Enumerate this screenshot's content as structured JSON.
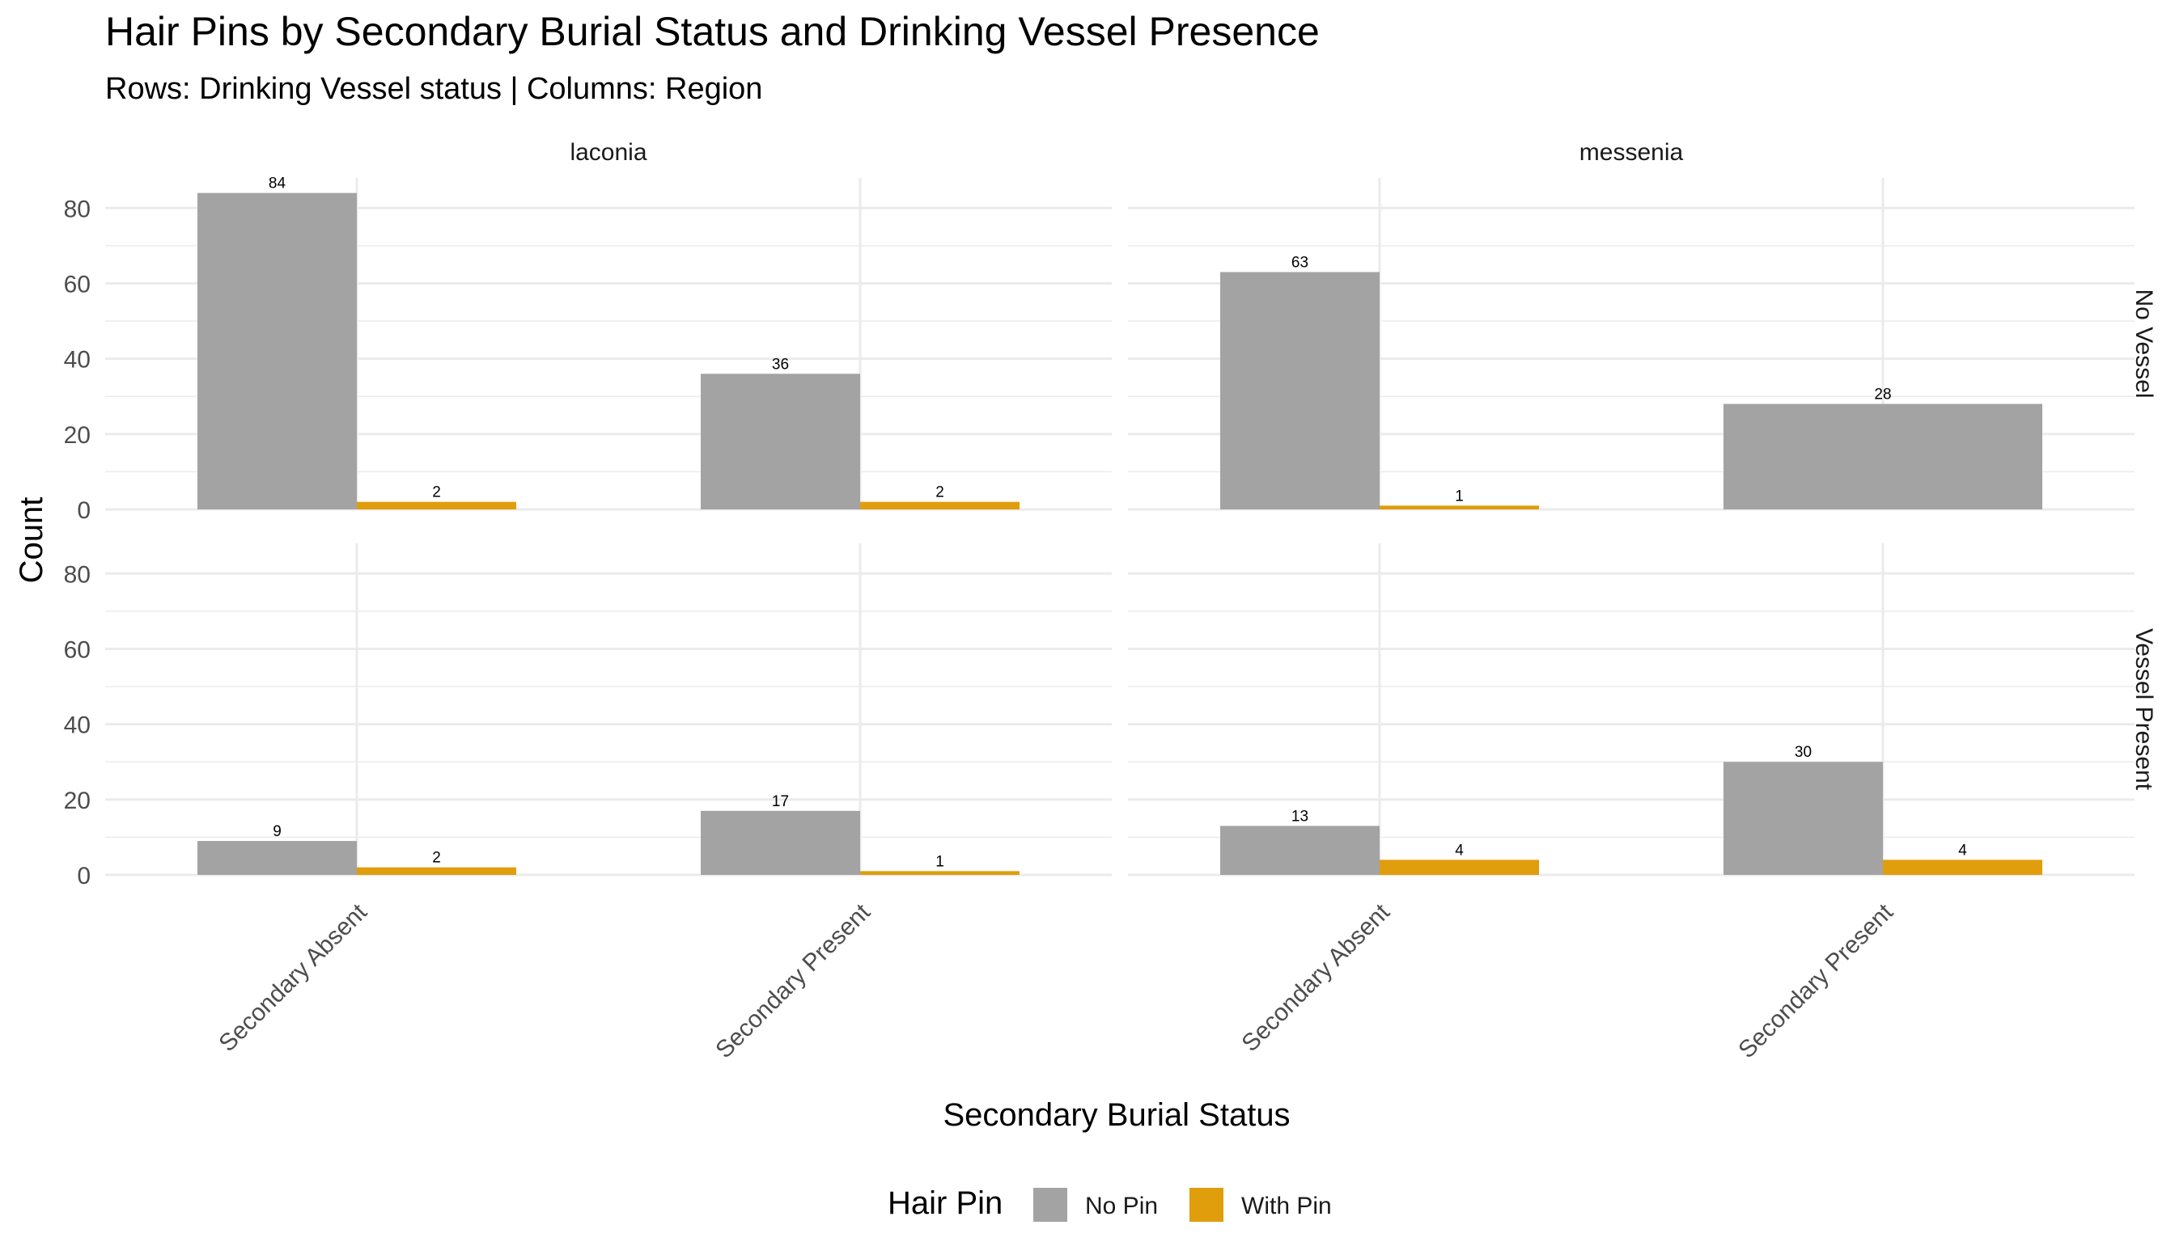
{
  "colors": {
    "no_pin": "#A3A3A3",
    "with_pin": "#E09D0C"
  },
  "chart_data": {
    "type": "bar",
    "title": "Hair Pins by Secondary Burial Status and Drinking Vessel Presence",
    "subtitle": "Rows: Drinking Vessel status | Columns: Region",
    "xlabel": "Secondary Burial Status",
    "ylabel": "Count",
    "ylim": [
      0,
      88
    ],
    "y_ticks": [
      0,
      20,
      40,
      60,
      80
    ],
    "categories": [
      "Secondary Absent",
      "Secondary Present"
    ],
    "legend": {
      "title": "Hair Pin",
      "placement": "bottom",
      "entries": [
        "No Pin",
        "With Pin"
      ]
    },
    "columns": [
      "laconia",
      "messenia"
    ],
    "rows": [
      "No Vessel",
      "Vessel Present"
    ],
    "panels": [
      {
        "column": "laconia",
        "row": "No Vessel",
        "series": [
          {
            "name": "No Pin",
            "values": [
              84,
              36
            ]
          },
          {
            "name": "With Pin",
            "values": [
              2,
              2
            ]
          }
        ]
      },
      {
        "column": "messenia",
        "row": "No Vessel",
        "series": [
          {
            "name": "No Pin",
            "values": [
              63,
              28
            ]
          },
          {
            "name": "With Pin",
            "values": [
              1,
              null
            ]
          }
        ]
      },
      {
        "column": "laconia",
        "row": "Vessel Present",
        "series": [
          {
            "name": "No Pin",
            "values": [
              9,
              17
            ]
          },
          {
            "name": "With Pin",
            "values": [
              2,
              1
            ]
          }
        ]
      },
      {
        "column": "messenia",
        "row": "Vessel Present",
        "series": [
          {
            "name": "No Pin",
            "values": [
              13,
              30
            ]
          },
          {
            "name": "With Pin",
            "values": [
              4,
              4
            ]
          }
        ]
      }
    ]
  }
}
